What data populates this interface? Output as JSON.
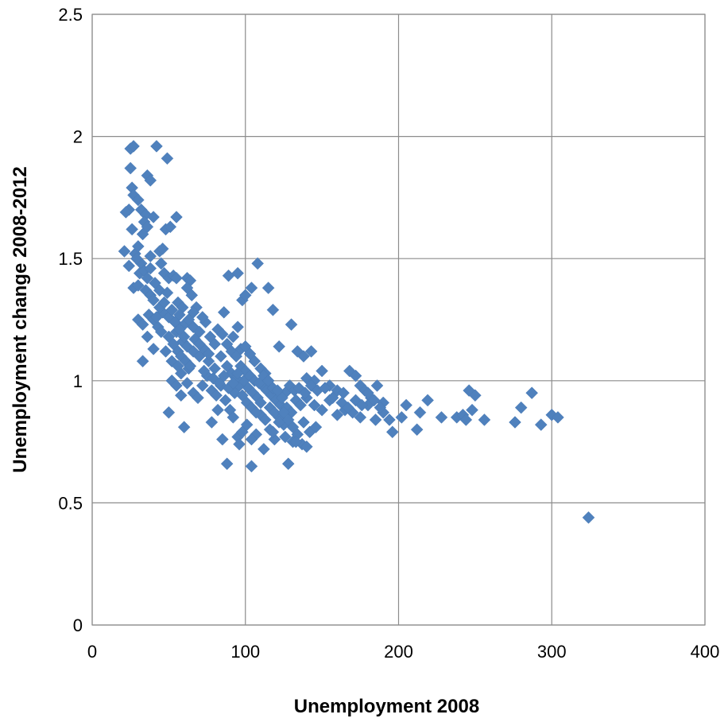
{
  "chart_data": {
    "type": "scatter",
    "title": "",
    "xlabel": "Unemployment 2008",
    "ylabel": "Unemployment change 2008-2012",
    "xlim": [
      0,
      400
    ],
    "ylim": [
      0,
      2.5
    ],
    "x_ticks": [
      "0",
      "100",
      "200",
      "300",
      "400"
    ],
    "y_ticks": [
      "0",
      "0.5",
      "1",
      "1.5",
      "2",
      "2.5"
    ],
    "grid": true,
    "legend": "none",
    "marker": "diamond",
    "marker_color": "#4f81bd",
    "points": [
      [
        25,
        1.95
      ],
      [
        27,
        1.96
      ],
      [
        42,
        1.96
      ],
      [
        49,
        1.91
      ],
      [
        25,
        1.87
      ],
      [
        36,
        1.84
      ],
      [
        38,
        1.82
      ],
      [
        26,
        1.79
      ],
      [
        27,
        1.76
      ],
      [
        30,
        1.74
      ],
      [
        32,
        1.7
      ],
      [
        24,
        1.7
      ],
      [
        22,
        1.69
      ],
      [
        35,
        1.68
      ],
      [
        40,
        1.67
      ],
      [
        55,
        1.67
      ],
      [
        34,
        1.65
      ],
      [
        36,
        1.63
      ],
      [
        48,
        1.62
      ],
      [
        51,
        1.63
      ],
      [
        21,
        1.53
      ],
      [
        28,
        1.52
      ],
      [
        30,
        1.55
      ],
      [
        32,
        1.48
      ],
      [
        38,
        1.51
      ],
      [
        44,
        1.53
      ],
      [
        46,
        1.54
      ],
      [
        24,
        1.47
      ],
      [
        31,
        1.44
      ],
      [
        34,
        1.45
      ],
      [
        36,
        1.42
      ],
      [
        41,
        1.4
      ],
      [
        47,
        1.44
      ],
      [
        50,
        1.42
      ],
      [
        53,
        1.43
      ],
      [
        55,
        1.42
      ],
      [
        27,
        1.38
      ],
      [
        30,
        1.39
      ],
      [
        35,
        1.37
      ],
      [
        38,
        1.35
      ],
      [
        40,
        1.33
      ],
      [
        44,
        1.37
      ],
      [
        49,
        1.36
      ],
      [
        56,
        1.32
      ],
      [
        59,
        1.3
      ],
      [
        62,
        1.42
      ],
      [
        64,
        1.41
      ],
      [
        62,
        1.38
      ],
      [
        65,
        1.35
      ],
      [
        68,
        1.3
      ],
      [
        30,
        1.25
      ],
      [
        33,
        1.23
      ],
      [
        37,
        1.27
      ],
      [
        40,
        1.25
      ],
      [
        43,
        1.22
      ],
      [
        46,
        1.28
      ],
      [
        50,
        1.26
      ],
      [
        54,
        1.24
      ],
      [
        57,
        1.27
      ],
      [
        60,
        1.23
      ],
      [
        63,
        1.25
      ],
      [
        66,
        1.22
      ],
      [
        70,
        1.2
      ],
      [
        74,
        1.24
      ],
      [
        77,
        1.18
      ],
      [
        80,
        1.15
      ],
      [
        36,
        1.18
      ],
      [
        40,
        1.13
      ],
      [
        45,
        1.2
      ],
      [
        50,
        1.18
      ],
      [
        53,
        1.15
      ],
      [
        56,
        1.12
      ],
      [
        59,
        1.16
      ],
      [
        62,
        1.14
      ],
      [
        66,
        1.12
      ],
      [
        70,
        1.1
      ],
      [
        73,
        1.13
      ],
      [
        76,
        1.08
      ],
      [
        80,
        1.05
      ],
      [
        84,
        1.1
      ],
      [
        86,
        1.28
      ],
      [
        89,
        1.43
      ],
      [
        95,
        1.44
      ],
      [
        98,
        1.33
      ],
      [
        100,
        1.35
      ],
      [
        104,
        1.38
      ],
      [
        108,
        1.48
      ],
      [
        115,
        1.38
      ],
      [
        118,
        1.29
      ],
      [
        95,
        1.22
      ],
      [
        92,
        1.18
      ],
      [
        88,
        1.15
      ],
      [
        91,
        1.12
      ],
      [
        94,
        1.1
      ],
      [
        97,
        1.13
      ],
      [
        100,
        1.14
      ],
      [
        103,
        1.11
      ],
      [
        106,
        1.08
      ],
      [
        110,
        1.05
      ],
      [
        113,
        1.03
      ],
      [
        33,
        1.08
      ],
      [
        50,
        0.87
      ],
      [
        52,
        1.0
      ],
      [
        55,
        0.98
      ],
      [
        58,
        1.03
      ],
      [
        60,
        0.81
      ],
      [
        63,
        1.05
      ],
      [
        66,
        0.95
      ],
      [
        69,
        0.93
      ],
      [
        72,
        0.98
      ],
      [
        75,
        1.02
      ],
      [
        78,
        0.96
      ],
      [
        81,
        0.94
      ],
      [
        84,
        0.98
      ],
      [
        87,
        0.92
      ],
      [
        90,
        0.88
      ],
      [
        93,
        0.95
      ],
      [
        96,
        0.98
      ],
      [
        99,
        1.0
      ],
      [
        102,
        0.97
      ],
      [
        105,
        0.95
      ],
      [
        108,
        0.93
      ],
      [
        111,
        0.98
      ],
      [
        114,
        0.96
      ],
      [
        117,
        0.94
      ],
      [
        120,
        0.92
      ],
      [
        123,
        0.9
      ],
      [
        126,
        0.95
      ],
      [
        129,
        0.98
      ],
      [
        132,
        0.96
      ],
      [
        78,
        0.83
      ],
      [
        82,
        0.88
      ],
      [
        85,
        0.76
      ],
      [
        88,
        0.66
      ],
      [
        92,
        0.85
      ],
      [
        95,
        0.77
      ],
      [
        98,
        0.79
      ],
      [
        101,
        0.82
      ],
      [
        104,
        0.65
      ],
      [
        107,
        0.78
      ],
      [
        110,
        0.86
      ],
      [
        113,
        0.84
      ],
      [
        116,
        0.8
      ],
      [
        119,
        0.76
      ],
      [
        122,
        0.85
      ],
      [
        125,
        0.82
      ],
      [
        128,
        0.66
      ],
      [
        131,
        0.75
      ],
      [
        134,
        0.78
      ],
      [
        137,
        0.74
      ],
      [
        122,
        1.14
      ],
      [
        130,
        1.23
      ],
      [
        134,
        1.12
      ],
      [
        138,
        1.1
      ],
      [
        143,
        1.12
      ],
      [
        140,
        1.01
      ],
      [
        145,
        1.0
      ],
      [
        150,
        1.04
      ],
      [
        155,
        0.98
      ],
      [
        160,
        0.96
      ],
      [
        164,
        0.95
      ],
      [
        168,
        1.04
      ],
      [
        172,
        1.02
      ],
      [
        175,
        0.98
      ],
      [
        178,
        0.96
      ],
      [
        182,
        0.93
      ],
      [
        186,
        0.98
      ],
      [
        190,
        0.91
      ],
      [
        140,
        0.93
      ],
      [
        145,
        0.9
      ],
      [
        150,
        0.88
      ],
      [
        155,
        0.92
      ],
      [
        160,
        0.86
      ],
      [
        165,
        0.88
      ],
      [
        170,
        0.87
      ],
      [
        175,
        0.85
      ],
      [
        180,
        0.9
      ],
      [
        185,
        0.84
      ],
      [
        190,
        0.87
      ],
      [
        194,
        0.84
      ],
      [
        138,
        0.83
      ],
      [
        142,
        0.79
      ],
      [
        146,
        0.81
      ],
      [
        140,
        0.73
      ],
      [
        196,
        0.79
      ],
      [
        202,
        0.85
      ],
      [
        205,
        0.9
      ],
      [
        212,
        0.8
      ],
      [
        214,
        0.87
      ],
      [
        219,
        0.92
      ],
      [
        228,
        0.85
      ],
      [
        238,
        0.85
      ],
      [
        242,
        0.86
      ],
      [
        244,
        0.84
      ],
      [
        246,
        0.96
      ],
      [
        248,
        0.88
      ],
      [
        250,
        0.94
      ],
      [
        256,
        0.84
      ],
      [
        276,
        0.83
      ],
      [
        280,
        0.89
      ],
      [
        287,
        0.95
      ],
      [
        293,
        0.82
      ],
      [
        300,
        0.86
      ],
      [
        304,
        0.85
      ],
      [
        324,
        0.44
      ],
      [
        58,
        1.1
      ],
      [
        61,
        1.08
      ],
      [
        64,
        1.06
      ],
      [
        67,
        1.17
      ],
      [
        70,
        1.15
      ],
      [
        73,
        1.04
      ],
      [
        82,
        1.21
      ],
      [
        85,
        1.19
      ],
      [
        88,
        1.06
      ],
      [
        91,
        1.03
      ],
      [
        94,
        1.01
      ],
      [
        97,
        1.06
      ],
      [
        100,
        1.04
      ],
      [
        103,
        1.02
      ],
      [
        106,
        1.0
      ],
      [
        109,
        0.99
      ],
      [
        112,
        1.02
      ],
      [
        115,
        1.0
      ],
      [
        118,
        0.97
      ],
      [
        121,
        0.96
      ],
      [
        124,
        0.93
      ],
      [
        127,
        0.89
      ],
      [
        130,
        0.87
      ],
      [
        133,
        0.92
      ],
      [
        136,
        0.9
      ],
      [
        44,
        1.3
      ],
      [
        47,
        1.32
      ],
      [
        52,
        1.29
      ],
      [
        55,
        1.2
      ],
      [
        48,
        1.12
      ],
      [
        52,
        1.08
      ],
      [
        56,
        1.06
      ],
      [
        60,
        1.18
      ],
      [
        57,
        1.21
      ],
      [
        42,
        1.26
      ],
      [
        26,
        1.62
      ],
      [
        33,
        1.6
      ],
      [
        29,
        1.5
      ],
      [
        38,
        1.46
      ],
      [
        45,
        1.48
      ],
      [
        66,
        1.28
      ],
      [
        72,
        1.26
      ],
      [
        76,
        1.11
      ],
      [
        79,
        1.01
      ],
      [
        83,
        0.99
      ],
      [
        86,
        1.02
      ],
      [
        89,
        0.97
      ],
      [
        92,
        0.99
      ],
      [
        95,
        1.03
      ],
      [
        98,
        0.94
      ],
      [
        101,
        0.91
      ],
      [
        104,
        0.89
      ],
      [
        107,
        0.87
      ],
      [
        110,
        0.91
      ],
      [
        116,
        0.89
      ],
      [
        119,
        0.87
      ],
      [
        122,
        0.83
      ],
      [
        125,
        0.87
      ],
      [
        128,
        0.84
      ],
      [
        131,
        0.81
      ],
      [
        135,
        0.97
      ],
      [
        139,
        0.95
      ],
      [
        143,
        0.98
      ],
      [
        147,
        0.96
      ],
      [
        152,
        0.97
      ],
      [
        157,
        0.93
      ],
      [
        163,
        0.91
      ],
      [
        167,
        0.89
      ],
      [
        172,
        0.92
      ],
      [
        176,
        0.9
      ],
      [
        180,
        0.95
      ],
      [
        184,
        0.92
      ],
      [
        188,
        0.89
      ],
      [
        62,
        0.99
      ],
      [
        58,
        0.94
      ],
      [
        96,
        0.74
      ],
      [
        104,
        0.76
      ],
      [
        112,
        0.72
      ],
      [
        118,
        0.79
      ],
      [
        126,
        0.77
      ],
      [
        133,
        0.75
      ]
    ]
  }
}
